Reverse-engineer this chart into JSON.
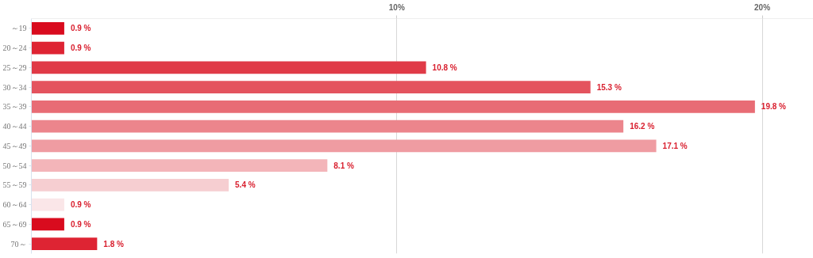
{
  "chart_data": {
    "type": "bar",
    "orientation": "horizontal",
    "categories": [
      "～19",
      "20～24",
      "25～29",
      "30～34",
      "35～39",
      "40～44",
      "45～49",
      "50～54",
      "55～59",
      "60～64",
      "65～69",
      "70～"
    ],
    "values": [
      0.9,
      0.9,
      10.8,
      15.3,
      19.8,
      16.2,
      17.1,
      8.1,
      5.4,
      0.9,
      0.9,
      1.8
    ],
    "colors": [
      "#d90b1e",
      "#de2433",
      "#e03a47",
      "#e4535e",
      "#e86c75",
      "#ec858c",
      "#ef9ca2",
      "#f3b5b9",
      "#f6ced1",
      "#fae6e8",
      "#d90b1e",
      "#de2433"
    ],
    "value_labels": [
      "0.9 %",
      "0.9 %",
      "10.8 %",
      "15.3 %",
      "19.8 %",
      "16.2 %",
      "17.1 %",
      "8.1 %",
      "5.4 %",
      "0.9 %",
      "0.9 %",
      "1.8 %"
    ],
    "xlim": [
      0,
      21.4
    ],
    "xticks": [
      {
        "value": 10,
        "label": "10%"
      },
      {
        "value": 20,
        "label": "20%"
      }
    ],
    "grid": "x"
  }
}
